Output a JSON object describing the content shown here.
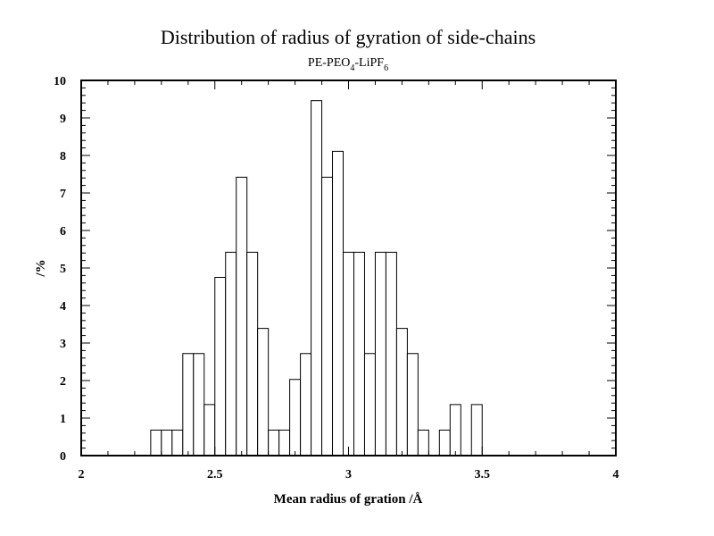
{
  "chart_data": {
    "type": "bar",
    "title": "Distribution of radius of gyration of side-chains",
    "subtitle": {
      "base": "PE-PEO",
      "sub1": "4",
      "mid": "-LiPF",
      "sub2": "6"
    },
    "xlabel": "Mean radius of gration /Å",
    "ylabel": "/%",
    "xlim": [
      2,
      4
    ],
    "ylim": [
      0,
      10
    ],
    "x_ticks": [
      "2",
      "2.5",
      "3",
      "3.5",
      "4"
    ],
    "y_ticks": [
      "0",
      "1",
      "2",
      "3",
      "4",
      "5",
      "6",
      "7",
      "8",
      "9",
      "10"
    ],
    "bin_width": 0.04,
    "bins": [
      {
        "x": 2.26,
        "value": 0.68
      },
      {
        "x": 2.3,
        "value": 0.68
      },
      {
        "x": 2.34,
        "value": 0.68
      },
      {
        "x": 2.38,
        "value": 2.72
      },
      {
        "x": 2.42,
        "value": 2.72
      },
      {
        "x": 2.46,
        "value": 1.36
      },
      {
        "x": 2.5,
        "value": 4.75
      },
      {
        "x": 2.54,
        "value": 5.42
      },
      {
        "x": 2.58,
        "value": 7.42
      },
      {
        "x": 2.62,
        "value": 5.42
      },
      {
        "x": 2.66,
        "value": 3.39
      },
      {
        "x": 2.7,
        "value": 0.68
      },
      {
        "x": 2.74,
        "value": 0.68
      },
      {
        "x": 2.78,
        "value": 2.03
      },
      {
        "x": 2.82,
        "value": 2.72
      },
      {
        "x": 2.86,
        "value": 9.46
      },
      {
        "x": 2.9,
        "value": 7.42
      },
      {
        "x": 2.94,
        "value": 8.11
      },
      {
        "x": 2.98,
        "value": 5.42
      },
      {
        "x": 3.02,
        "value": 5.42
      },
      {
        "x": 3.06,
        "value": 2.72
      },
      {
        "x": 3.1,
        "value": 5.42
      },
      {
        "x": 3.14,
        "value": 5.42
      },
      {
        "x": 3.18,
        "value": 3.39
      },
      {
        "x": 3.22,
        "value": 2.72
      },
      {
        "x": 3.26,
        "value": 0.68
      },
      {
        "x": 3.3,
        "value": 0
      },
      {
        "x": 3.34,
        "value": 0.68
      },
      {
        "x": 3.38,
        "value": 1.36
      },
      {
        "x": 3.42,
        "value": 0
      },
      {
        "x": 3.46,
        "value": 1.36
      }
    ],
    "grid": false,
    "legend": "none"
  }
}
